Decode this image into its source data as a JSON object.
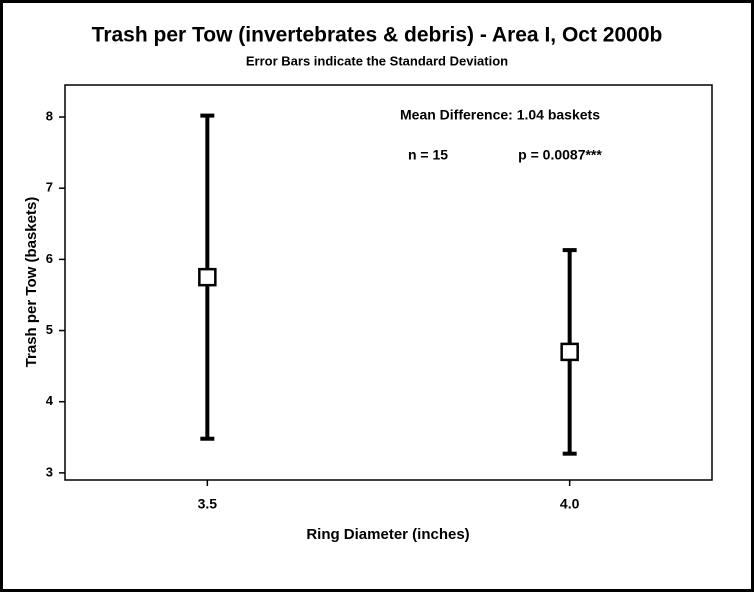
{
  "chart_data": {
    "type": "errorbar",
    "title": "Trash per Tow (invertebrates & debris) - Area I, Oct 2000b",
    "subtitle": "Error Bars indicate the Standard Deviation",
    "xlabel": "Ring Diameter (inches)",
    "ylabel": "Trash per Tow (baskets)",
    "annotations": [
      "Mean Difference: 1.04 baskets",
      "n = 15",
      "p = 0.0087***"
    ],
    "categories": [
      "3.5",
      "4.0"
    ],
    "values": [
      5.75,
      4.7
    ],
    "errors": [
      2.27,
      1.43
    ],
    "color": "#000000",
    "ylim": [
      2.9,
      8.45
    ],
    "yticks": [
      3,
      4,
      5,
      6,
      7,
      8
    ]
  }
}
